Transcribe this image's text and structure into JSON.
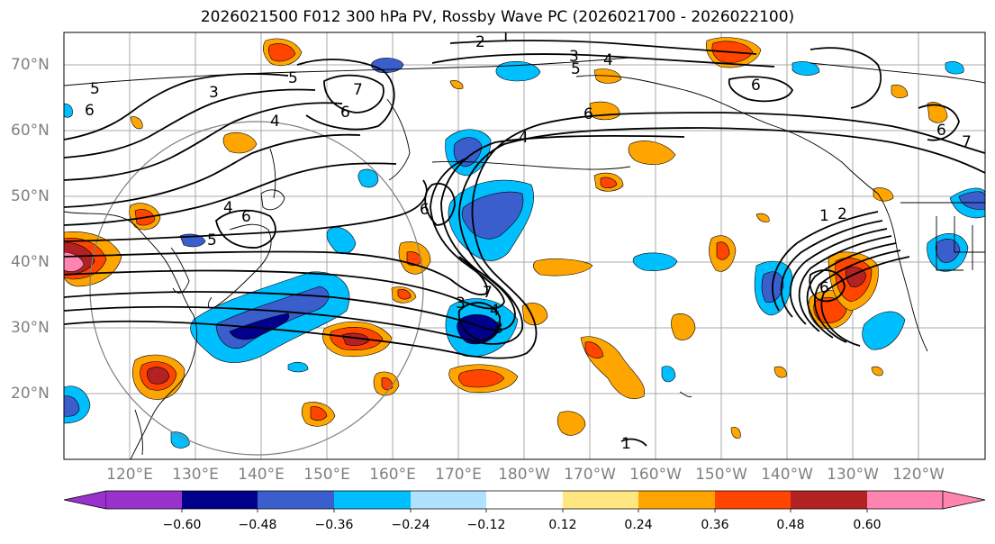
{
  "title": "2026021500 F012 300 hPa PV, Rossby Wave PC (2026021700 - 2026022100)",
  "lat_labels": [
    "70°N",
    "60°N",
    "50°N",
    "40°N",
    "30°N",
    "20°N"
  ],
  "lon_labels": [
    "120°E",
    "130°E",
    "140°E",
    "150°E",
    "160°E",
    "170°E",
    "180°W",
    "170°W",
    "160°W",
    "150°W",
    "140°W",
    "130°W",
    "120°W"
  ],
  "colorbar": {
    "ticks": [
      "−0.60",
      "−0.48",
      "−0.36",
      "−0.24",
      "−0.12",
      "0.12",
      "0.24",
      "0.36",
      "0.48",
      "0.60"
    ],
    "colors": [
      "#9932cc",
      "#00008b",
      "#3a5fcd",
      "#00bfff",
      "#b0e2ff",
      "#ffffff",
      "#ffe680",
      "#ffa500",
      "#ff4500",
      "#b22222",
      "#ff85b0"
    ]
  },
  "pv_contour_labels": [
    "1",
    "2",
    "3",
    "4",
    "5",
    "6",
    "7"
  ],
  "contour_label_list": [
    "6",
    "5",
    "3",
    "7",
    "6",
    "5",
    "4",
    "2",
    "1",
    "3",
    "5",
    "4",
    "6",
    "6",
    "6",
    "4",
    "6",
    "5",
    "4",
    "3",
    "7",
    "4",
    "3",
    "1",
    "2",
    "6",
    "6",
    "1",
    "7"
  ]
}
